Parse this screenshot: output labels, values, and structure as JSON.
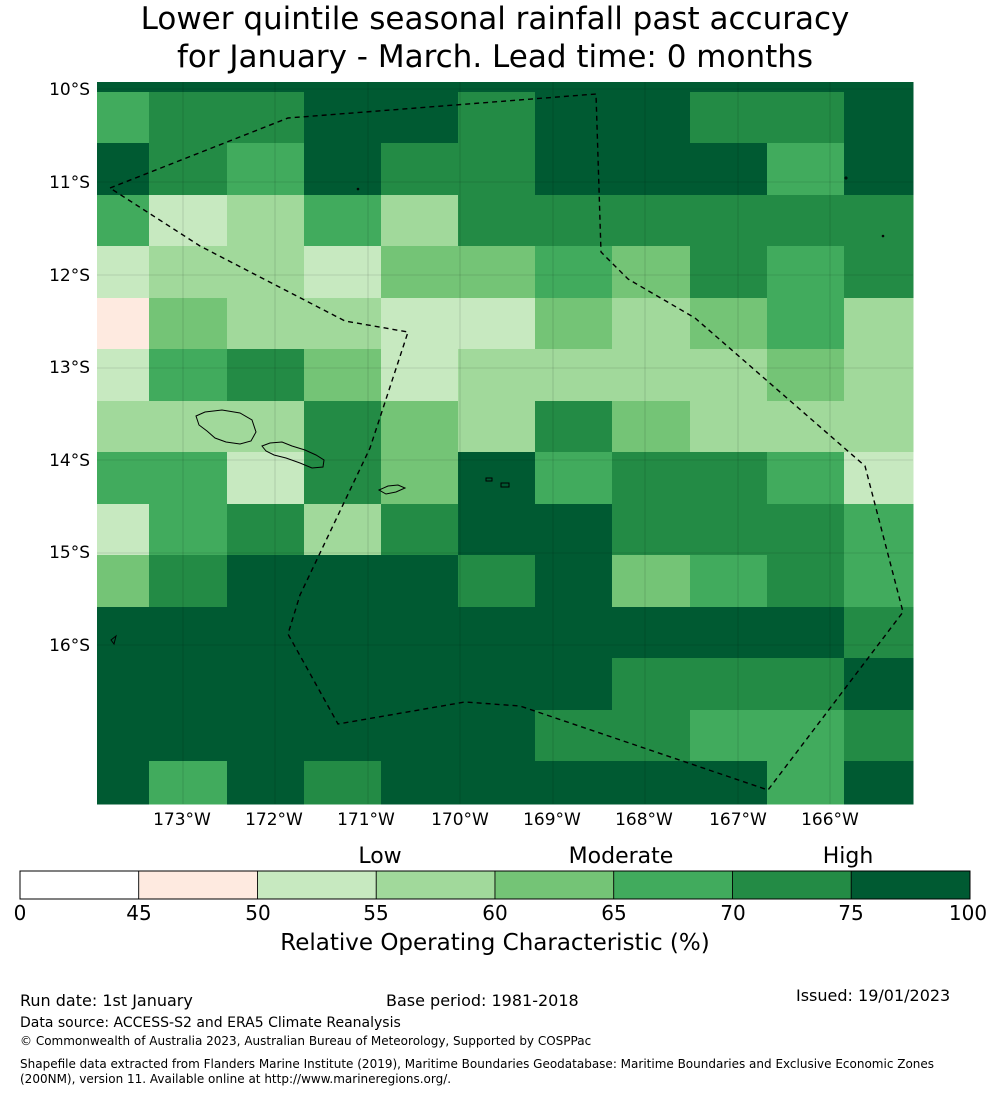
{
  "title": {
    "line1": "Lower quintile seasonal rainfall past accuracy",
    "line2": "for January - March. Lead time: 0 months"
  },
  "map": {
    "lat_labels": [
      "10°S",
      "11°S",
      "12°S",
      "13°S",
      "14°S",
      "15°S",
      "16°S"
    ],
    "lon_labels": [
      "173°W",
      "172°W",
      "171°W",
      "170°W",
      "169°W",
      "168°W",
      "167°W",
      "166°W"
    ],
    "grid_values": [
      [
        75,
        75,
        75,
        75,
        75,
        75,
        75,
        75,
        75,
        75,
        75
      ],
      [
        65,
        70,
        70,
        75,
        75,
        70,
        75,
        75,
        70,
        70,
        75
      ],
      [
        75,
        70,
        65,
        75,
        70,
        70,
        75,
        75,
        75,
        65,
        75
      ],
      [
        65,
        50,
        55,
        65,
        55,
        70,
        70,
        70,
        70,
        70,
        70
      ],
      [
        50,
        55,
        55,
        50,
        60,
        60,
        65,
        60,
        70,
        65,
        70
      ],
      [
        45,
        60,
        55,
        55,
        50,
        50,
        60,
        55,
        60,
        65,
        55
      ],
      [
        50,
        65,
        70,
        60,
        50,
        55,
        55,
        55,
        55,
        60,
        55
      ],
      [
        55,
        55,
        55,
        70,
        60,
        55,
        70,
        60,
        55,
        55,
        55
      ],
      [
        65,
        65,
        50,
        70,
        60,
        75,
        65,
        70,
        70,
        65,
        50
      ],
      [
        50,
        65,
        70,
        55,
        70,
        75,
        75,
        70,
        70,
        70,
        65
      ],
      [
        60,
        70,
        75,
        75,
        75,
        70,
        75,
        60,
        65,
        70,
        65
      ],
      [
        75,
        75,
        75,
        75,
        75,
        75,
        75,
        75,
        75,
        75,
        70
      ],
      [
        75,
        75,
        75,
        75,
        75,
        75,
        75,
        70,
        70,
        70,
        75
      ],
      [
        75,
        75,
        75,
        75,
        75,
        75,
        70,
        70,
        65,
        65,
        70
      ],
      [
        75,
        65,
        75,
        70,
        75,
        75,
        75,
        75,
        75,
        65,
        75
      ]
    ]
  },
  "colorbar": {
    "ticks": [
      "0",
      "45",
      "50",
      "55",
      "60",
      "65",
      "70",
      "75",
      "100"
    ],
    "bin_colors": [
      "#ffffff",
      "#feeae0",
      "#c7e9c0",
      "#a1d99b",
      "#74c476",
      "#41ab5d",
      "#238b45",
      "#005a32"
    ],
    "categories": [
      "Low",
      "Moderate",
      "High"
    ],
    "title": "Relative Operating Characteristic (%)"
  },
  "footer": {
    "run_date": "Run date: 1st January",
    "base_period": "Base period: 1981-2018",
    "issued": "Issued: 19/01/2023",
    "data_source": "Data source: ACCESS-S2 and ERA5 Climate Reanalysis",
    "copyright": "© Commonwealth of Australia 2023, Australian Bureau of Meteorology, Supported by COSPPac",
    "shapefile_line1": "Shapefile data extracted from Flanders Marine Institute (2019), Maritime Boundaries Geodatabase: Maritime Boundaries and Exclusive Economic Zones",
    "shapefile_line2": "(200NM), version 11. Available online at http://www.marineregions.org/."
  }
}
